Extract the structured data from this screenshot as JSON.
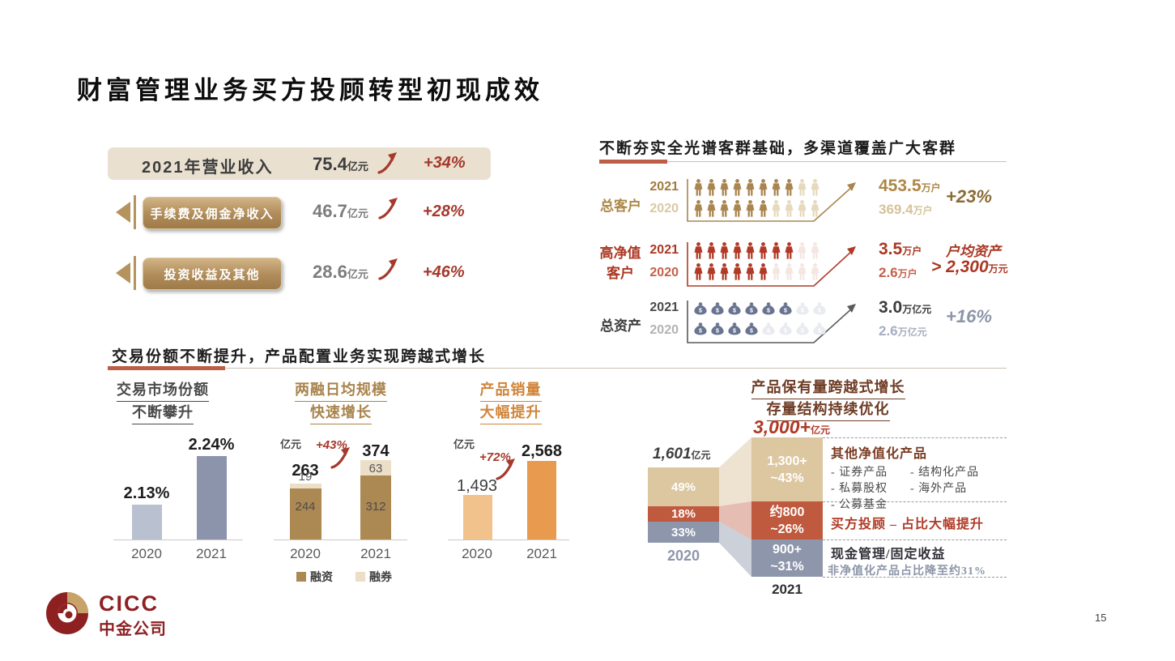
{
  "page": {
    "title": "财富管理业务买方投顾转型初现成效",
    "page_number": "15"
  },
  "footer": {
    "logo_en": "CICC",
    "logo_cn": "中金公司"
  },
  "colors": {
    "accent_red": "#a5392c",
    "brand_red": "#8e2022",
    "tan": "#a9854f",
    "beige_box": "#e9e0d0",
    "flow_tan": "#dcc7a1",
    "flow_red": "#c05a3e",
    "flow_blue": "#8e96ab",
    "bar_gray_light": "#b9c0cf",
    "bar_gray_dark": "#8c94ab",
    "bar_orange_light": "#f2c28c",
    "bar_orange_dark": "#e89b4e",
    "rz_brown": "#ac8852",
    "rq_cream": "#ebdfc8"
  },
  "revenue_panel": {
    "main": {
      "label": "2021年营业收入",
      "value": "75.4",
      "unit": "亿元",
      "growth": "+34%"
    },
    "items": [
      {
        "label": "手续费及佣金净收入",
        "value": "46.7",
        "unit": "亿元",
        "growth": "+28%"
      },
      {
        "label": "投资收益及其他",
        "value": "28.6",
        "unit": "亿元",
        "growth": "+46%"
      }
    ]
  },
  "customer_panel": {
    "header": "不断夯实全光谱客群基础，多渠道覆盖广大客群",
    "rows": [
      {
        "label": "总客户",
        "year_2021": "2021",
        "year_2020": "2020",
        "value_2021": "453.5",
        "unit_2021": "万户",
        "value_2020": "369.4",
        "unit_2020": "万户",
        "growth": "+23%",
        "icons": {
          "type": "person",
          "row_2021": {
            "filled": 8,
            "faded": 2
          },
          "row_2020": {
            "filled": 6,
            "faded": 4
          }
        }
      },
      {
        "label_line1": "高净值",
        "label_line2": "客户",
        "year_2021": "2021",
        "year_2020": "2020",
        "value_2021": "3.5",
        "unit_2021": "万户",
        "value_2020": "2.6",
        "unit_2020": "万户",
        "note_title": "户均资产",
        "note_value": "> 2,300",
        "note_unit": "万元",
        "icons": {
          "type": "person",
          "row_2021": {
            "filled": 8,
            "faded": 2
          },
          "row_2020": {
            "filled": 6,
            "faded": 4
          }
        }
      },
      {
        "label": "总资产",
        "year_2021": "2021",
        "year_2020": "2020",
        "value_2021": "3.0",
        "unit_2021": "万亿元",
        "value_2020": "2.6",
        "unit_2020": "万亿元",
        "growth": "+16%",
        "icons": {
          "type": "moneybag",
          "row_2021": {
            "filled": 6,
            "faded": 2
          },
          "row_2020": {
            "filled": 4,
            "faded": 4
          }
        }
      }
    ]
  },
  "bottom_section": {
    "header": "交易份额不断提升，产品配置业务实现跨越式增长",
    "flow_annotations": {
      "group1_title": "其他净值化产品",
      "items_col1": [
        "- 证券产品",
        "- 私募股权",
        "- 公募基金"
      ],
      "items_col2": [
        "- 结构化产品",
        "- 海外产品"
      ],
      "group2": "买方投顾 – 占比大幅提升",
      "group3_title": "现金管理/固定收益",
      "group3_sub": "非净值化产品占比降至约31%"
    }
  },
  "chart_data": [
    {
      "type": "bar",
      "title": "交易市场份额不断攀升",
      "title_line1": "交易市场份额",
      "title_line2": "不断攀升",
      "categories": [
        "2020",
        "2021"
      ],
      "values": [
        2.13,
        2.24
      ],
      "unit": "%",
      "data_labels": [
        "2.13%",
        "2.24%"
      ],
      "colors": [
        "#b9c0cf",
        "#8c94ab"
      ],
      "grid": false
    },
    {
      "type": "bar",
      "subtype": "stacked",
      "title": "两融日均规模快速增长",
      "title_line1": "两融日均规模",
      "title_line2": "快速增长",
      "unit_label": "亿元",
      "categories": [
        "2020",
        "2021"
      ],
      "series": [
        {
          "name": "融资",
          "values": [
            244,
            312
          ],
          "color": "#ac8852"
        },
        {
          "name": "融券",
          "values": [
            19,
            63
          ],
          "color": "#ebdfc8"
        }
      ],
      "totals": [
        "263",
        "374"
      ],
      "growth": "+43%",
      "legend_position": "bottom"
    },
    {
      "type": "bar",
      "title": "产品销量大幅提升",
      "title_line1": "产品销量",
      "title_line2": "大幅提升",
      "unit_label": "亿元",
      "categories": [
        "2020",
        "2021"
      ],
      "values": [
        1493,
        2568
      ],
      "data_labels": [
        "1,493",
        "2,568"
      ],
      "growth": "+72%",
      "colors": [
        "#f2c28c",
        "#e89b4e"
      ]
    },
    {
      "type": "flow",
      "title_line1": "产品保有量跨越式增长",
      "title_line2": "存量结构持续优化",
      "unit": "亿元",
      "categories": [
        "2020",
        "2021"
      ],
      "total_2020": "1,601",
      "total_2020_unit": "亿元",
      "total_2021": "3,000+",
      "total_2021_unit": "亿元",
      "segments_2020": [
        {
          "name": "其他净值化产品",
          "label": "49%"
        },
        {
          "name": "买方投顾",
          "label": "18%"
        },
        {
          "name": "现金管理/固定收益",
          "label": "33%"
        }
      ],
      "segments_2021": [
        {
          "name": "其他净值化产品",
          "value": "1,300+",
          "share": "~43%"
        },
        {
          "name": "买方投顾",
          "value": "约800",
          "share": "~26%"
        },
        {
          "name": "现金管理/固定收益",
          "value": "900+",
          "share": "~31%"
        }
      ]
    },
    {
      "type": "pictogram",
      "title": "不断夯实全光谱客群基础，多渠道覆盖广大客群",
      "rows": [
        {
          "label": "总客户",
          "value_2021": "453.5万户",
          "value_2020": "369.4万户",
          "growth": "+23%"
        },
        {
          "label": "高净值客户",
          "value_2021": "3.5万户",
          "value_2020": "2.6万户",
          "note": "户均资产 > 2,300万元"
        },
        {
          "label": "总资产",
          "value_2021": "3.0万亿元",
          "value_2020": "2.6万亿元",
          "growth": "+16%"
        }
      ]
    }
  ]
}
